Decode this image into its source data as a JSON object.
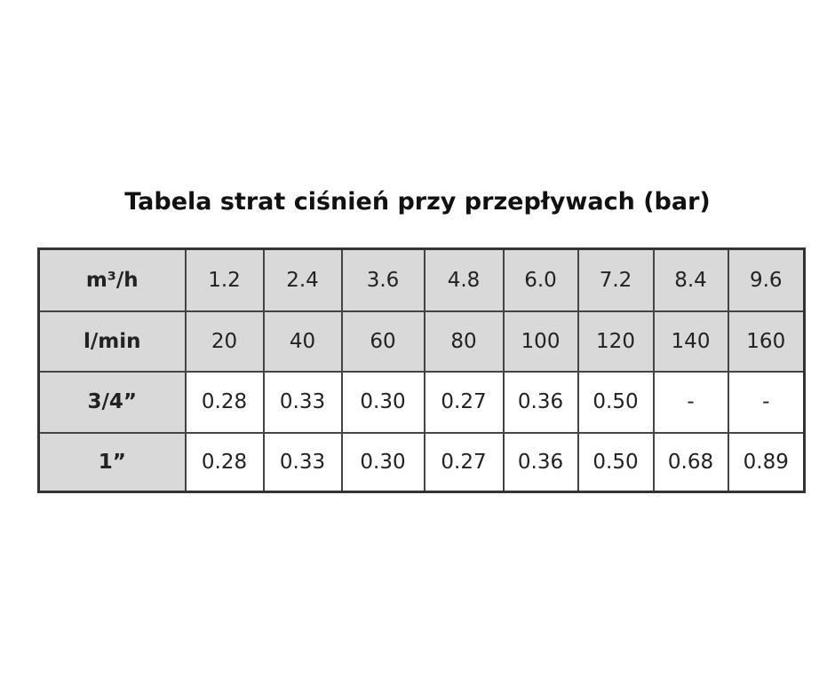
{
  "title": "Tabela strat ciśnień przy przepływach (bar)",
  "table": {
    "rows": [
      [
        "m³/h",
        "1.2",
        "2.4",
        "3.6",
        "4.8",
        "6.0",
        "7.2",
        "8.4",
        "9.6"
      ],
      [
        "l/min",
        "20",
        "40",
        "60",
        "80",
        "100",
        "120",
        "140",
        "160"
      ],
      [
        "3/4”",
        "0.28",
        "0.33",
        "0.30",
        "0.27",
        "0.36",
        "0.50",
        "-",
        "-"
      ],
      [
        "1”",
        "0.28",
        "0.33",
        "0.30",
        "0.27",
        "0.36",
        "0.50",
        "0.68",
        "0.89"
      ]
    ]
  }
}
